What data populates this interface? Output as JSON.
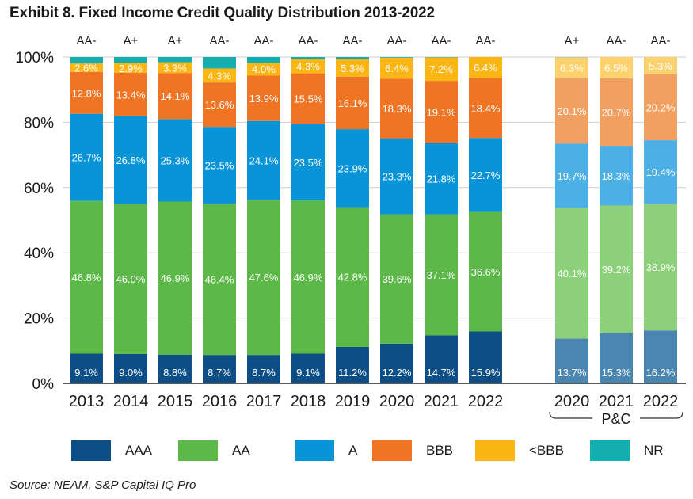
{
  "title": "Exhibit 8. Fixed Income Credit Quality Distribution 2013-2022",
  "source": "Source: NEAM, S&P Capital IQ Pro",
  "colors": {
    "AAA": "#0d4e86",
    "AA": "#5cb848",
    "A": "#0a94d8",
    "BBB": "#ef7424",
    "<BBB": "#fbb514",
    "NR": "#14aeb0",
    "AAA_pc": "#4a86b0",
    "AA_pc": "#8dd07a",
    "A_pc": "#4cb0e4",
    "BBB_pc": "#f2a061",
    "<BBB_pc": "#fcd16e",
    "NR_pc": "#6dcacb"
  },
  "legend": [
    {
      "key": "AAA",
      "label": "AAA"
    },
    {
      "key": "AA",
      "label": "AA"
    },
    {
      "key": "A",
      "label": "A"
    },
    {
      "key": "BBB",
      "label": "BBB"
    },
    {
      "key": "<BBB",
      "label": "<BBB"
    },
    {
      "key": "NR",
      "label": "NR"
    }
  ],
  "chart_data": {
    "type": "bar",
    "stacked": true,
    "ylim": [
      0,
      100
    ],
    "yticks": [
      "0%",
      "20%",
      "40%",
      "60%",
      "80%",
      "100%"
    ],
    "series_order": [
      "AAA",
      "AA",
      "A",
      "BBB",
      "<BBB",
      "NR"
    ],
    "group_label": "P&C",
    "bars": [
      {
        "year": "2013",
        "rating": "AA-",
        "group": "all",
        "values": {
          "AAA": 9.1,
          "AA": 46.8,
          "A": 26.7,
          "BBB": 12.8,
          "<BBB": 2.6,
          "NR": 2.0
        }
      },
      {
        "year": "2014",
        "rating": "A+",
        "group": "all",
        "values": {
          "AAA": 9.0,
          "AA": 46.0,
          "A": 26.8,
          "BBB": 13.4,
          "<BBB": 2.9,
          "NR": 1.9
        }
      },
      {
        "year": "2015",
        "rating": "A+",
        "group": "all",
        "values": {
          "AAA": 8.8,
          "AA": 46.9,
          "A": 25.3,
          "BBB": 14.1,
          "<BBB": 3.3,
          "NR": 1.6
        }
      },
      {
        "year": "2016",
        "rating": "AA-",
        "group": "all",
        "values": {
          "AAA": 8.7,
          "AA": 46.4,
          "A": 23.5,
          "BBB": 13.6,
          "<BBB": 4.3,
          "NR": 3.5
        }
      },
      {
        "year": "2017",
        "rating": "AA-",
        "group": "all",
        "values": {
          "AAA": 8.7,
          "AA": 47.6,
          "A": 24.1,
          "BBB": 13.9,
          "<BBB": 4.0,
          "NR": 1.7
        }
      },
      {
        "year": "2018",
        "rating": "AA-",
        "group": "all",
        "values": {
          "AAA": 9.1,
          "AA": 46.9,
          "A": 23.5,
          "BBB": 15.5,
          "<BBB": 4.3,
          "NR": 0.7
        }
      },
      {
        "year": "2019",
        "rating": "AA-",
        "group": "all",
        "values": {
          "AAA": 11.2,
          "AA": 42.8,
          "A": 23.9,
          "BBB": 16.1,
          "<BBB": 5.3,
          "NR": 0.7
        }
      },
      {
        "year": "2020",
        "rating": "AA-",
        "group": "all",
        "values": {
          "AAA": 12.2,
          "AA": 39.6,
          "A": 23.3,
          "BBB": 18.3,
          "<BBB": 6.4,
          "NR": 0.2
        }
      },
      {
        "year": "2021",
        "rating": "AA-",
        "group": "all",
        "values": {
          "AAA": 14.7,
          "AA": 37.1,
          "A": 21.8,
          "BBB": 19.1,
          "<BBB": 7.2,
          "NR": 0.1
        }
      },
      {
        "year": "2022",
        "rating": "AA-",
        "group": "all",
        "values": {
          "AAA": 15.9,
          "AA": 36.6,
          "A": 22.7,
          "BBB": 18.4,
          "<BBB": 6.4,
          "NR": 0.0
        }
      },
      {
        "year": "2020",
        "rating": "A+",
        "group": "P&C",
        "values": {
          "AAA": 13.7,
          "AA": 40.1,
          "A": 19.7,
          "BBB": 20.1,
          "<BBB": 6.3,
          "NR": 0.1
        }
      },
      {
        "year": "2021",
        "rating": "AA-",
        "group": "P&C",
        "values": {
          "AAA": 15.3,
          "AA": 39.2,
          "A": 18.3,
          "BBB": 20.7,
          "<BBB": 6.5,
          "NR": 0.0
        }
      },
      {
        "year": "2022",
        "rating": "AA-",
        "group": "P&C",
        "values": {
          "AAA": 16.2,
          "AA": 38.9,
          "A": 19.4,
          "BBB": 20.2,
          "<BBB": 5.3,
          "NR": 0.0
        }
      }
    ]
  }
}
